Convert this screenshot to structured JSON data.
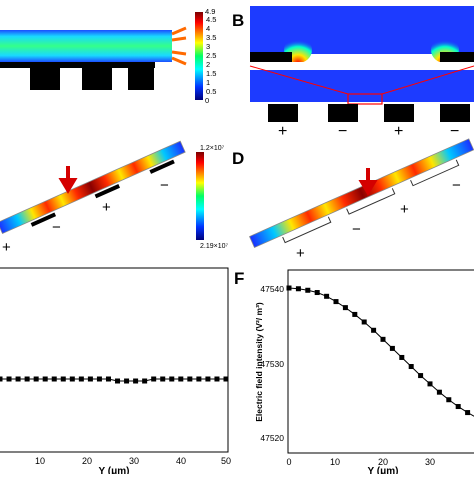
{
  "panels": {
    "a": {
      "cbar_top": "4.9",
      "cbar_bottom": "0",
      "ticks": [
        "4.5",
        "4",
        "3.5",
        "3",
        "2.5",
        "2",
        "1.5",
        "1",
        "0.5"
      ]
    },
    "b": {
      "letter": "B",
      "electrodes": [
        "+",
        "−",
        "+",
        "−"
      ]
    },
    "c": {
      "cbar_top": "1.2×10⁷",
      "cbar_bottom": "2.19×10⁷",
      "signs": [
        "+",
        "−",
        "+",
        "−"
      ]
    },
    "d": {
      "letter": "D",
      "signs": [
        "+",
        "−",
        "+",
        "−"
      ]
    },
    "e": {
      "xlabel": "Y (μm)",
      "xticks": [
        "10",
        "20",
        "30",
        "40",
        "50"
      ]
    },
    "f": {
      "letter": "F",
      "xlabel": "Y (μm)",
      "ylabel": "Electric field intensity (V²/ m³)",
      "xticks": [
        "0",
        "10",
        "20",
        "30"
      ],
      "yticks": [
        "47540",
        "47530",
        "47520"
      ]
    }
  },
  "chart_data": [
    {
      "panel": "E",
      "type": "scatter",
      "xlabel": "Y (μm)",
      "x": [
        0,
        2,
        4,
        6,
        8,
        10,
        12,
        14,
        16,
        18,
        20,
        22,
        24,
        26,
        28,
        30,
        32,
        34,
        36,
        38,
        40,
        42,
        44,
        46,
        48,
        50
      ],
      "y": [
        0,
        0,
        0,
        0,
        0,
        0,
        0,
        0,
        0,
        0,
        0,
        0,
        0,
        -0.4,
        -0.4,
        -0.4,
        -0.4,
        0,
        0,
        0,
        0,
        0,
        0,
        0,
        0,
        0
      ],
      "xlim": [
        0,
        50
      ]
    },
    {
      "panel": "F",
      "type": "scatter",
      "xlabel": "Y (μm)",
      "ylabel": "Electric field intensity (V²/ m³)",
      "x": [
        0,
        2,
        4,
        6,
        8,
        10,
        12,
        14,
        16,
        18,
        20,
        22,
        24,
        26,
        28,
        30,
        32,
        34,
        36,
        38,
        40
      ],
      "y": [
        47540,
        47539.9,
        47539.7,
        47539.4,
        47538.9,
        47538.2,
        47537.4,
        47536.5,
        47535.5,
        47534.4,
        47533.2,
        47532,
        47530.8,
        47529.6,
        47528.4,
        47527.3,
        47526.2,
        47525.2,
        47524.3,
        47523.5,
        47522.8
      ],
      "xlim": [
        0,
        40
      ],
      "ylim": [
        47518,
        47542
      ]
    }
  ]
}
